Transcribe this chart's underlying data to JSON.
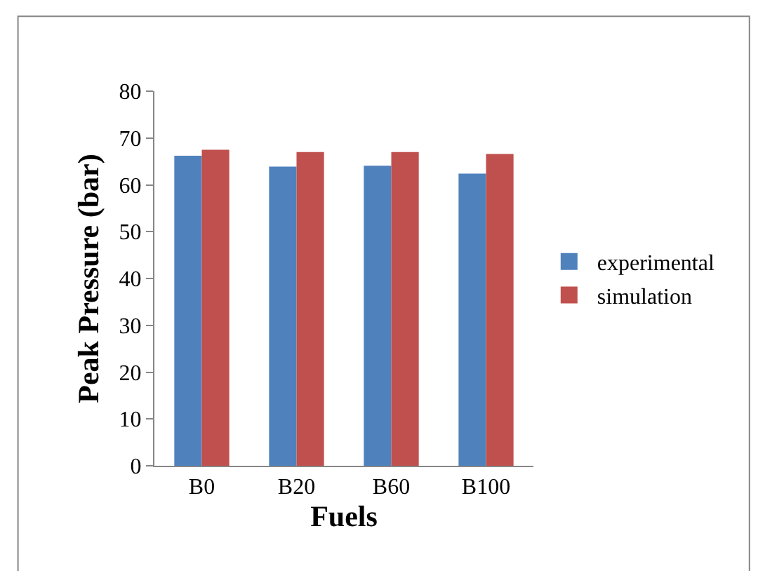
{
  "chart_data": {
    "type": "bar",
    "xlabel": "Fuels",
    "ylabel": "Peak Pressure (bar)",
    "categories": [
      "B0",
      "B20",
      "B60",
      "B100"
    ],
    "series": [
      {
        "name": "experimental",
        "color": "#4f81bd",
        "values": [
          66.2,
          63.9,
          64.1,
          62.4
        ]
      },
      {
        "name": "simulation",
        "color": "#c0504d",
        "values": [
          67.5,
          67.0,
          67.0,
          66.6
        ]
      }
    ],
    "ylim": [
      0,
      80
    ],
    "yticks": [
      0,
      10,
      20,
      30,
      40,
      50,
      60,
      70,
      80
    ],
    "grid": false,
    "legend": "right"
  }
}
